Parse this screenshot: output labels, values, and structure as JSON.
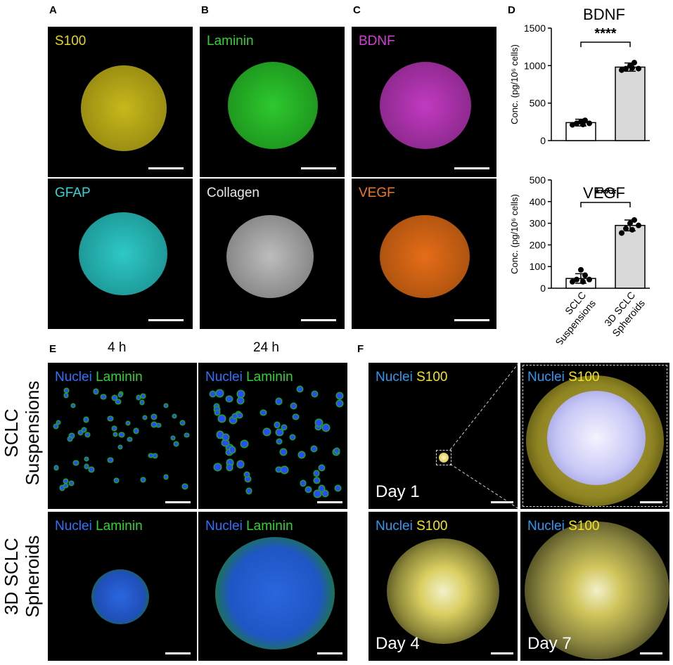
{
  "panel_letters": {
    "a": "A",
    "b": "B",
    "c": "C",
    "d": "D",
    "e": "E",
    "f": "F"
  },
  "stains": {
    "a_top": "S100",
    "a_bottom": "GFAP",
    "b_top": "Laminin",
    "b_bottom": "Collagen",
    "c_top": "BDNF",
    "c_bottom": "VEGF",
    "nuclei": "Nuclei",
    "laminin": "Laminin",
    "s100": "S100"
  },
  "colors": {
    "s100": "#e6d71d",
    "gfap": "#2fd7d6",
    "laminin": "#33d133",
    "collagen": "#e8e8e8",
    "bdnf": "#d63cd6",
    "vegf": "#f2771c",
    "nuclei": "#2a73ff"
  },
  "section_e": {
    "col_4h": "4 h",
    "col_24h": "24 h",
    "row1": [
      "SCLC",
      "Suspensions"
    ],
    "row2": [
      "3D SCLC",
      "Spheroids"
    ]
  },
  "section_f": {
    "day1": "Day 1",
    "day4": "Day 4",
    "day7": "Day 7"
  },
  "chart_data": [
    {
      "type": "bar",
      "title": "BDNF",
      "ylabel": "Conc. (pg/10⁶ cells)",
      "ylim": [
        0,
        1500
      ],
      "yticks": [
        "0",
        "500",
        "1000",
        "1500"
      ],
      "categories": [
        "SCLC Suspensions",
        "3D SCLC Spheroids"
      ],
      "values": [
        240,
        980
      ],
      "errors": [
        45,
        55
      ],
      "points": [
        [
          210,
          230,
          250,
          270,
          230,
          215
        ],
        [
          940,
          960,
          1000,
          1040,
          960,
          970
        ]
      ],
      "significance": "****"
    },
    {
      "type": "bar",
      "title": "VEGF",
      "ylabel": "Conc. (pg/10⁶ cells)",
      "ylim": [
        0,
        500
      ],
      "yticks": [
        "0",
        "100",
        "200",
        "300",
        "400",
        "500"
      ],
      "categories": [
        "SCLC Suspensions",
        "3D SCLC Spheroids"
      ],
      "category_lines": [
        [
          "SCLC",
          "Suspensions"
        ],
        [
          "3D SCLC",
          "Spheroids"
        ]
      ],
      "values": [
        45,
        290
      ],
      "errors": [
        22,
        25
      ],
      "points": [
        [
          30,
          40,
          85,
          60,
          40,
          30
        ],
        [
          255,
          275,
          300,
          315,
          290,
          270
        ]
      ],
      "significance": "****"
    }
  ]
}
